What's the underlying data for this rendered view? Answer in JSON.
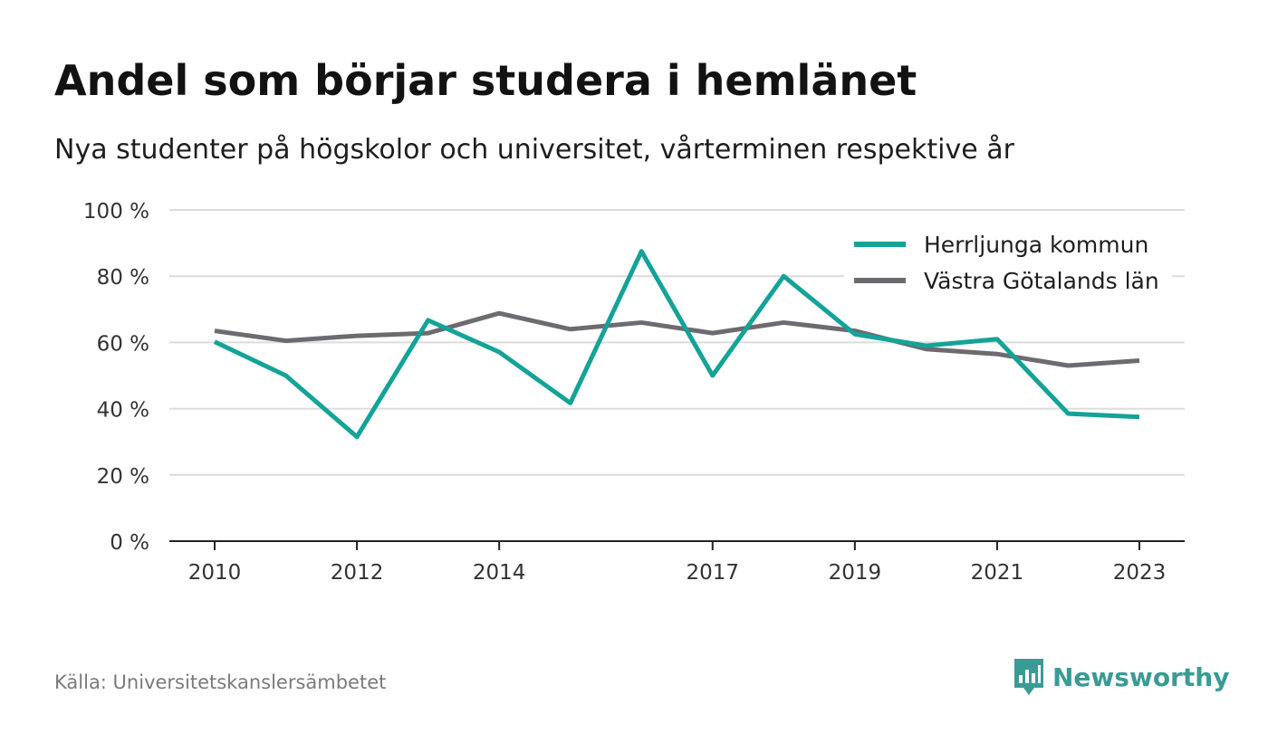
{
  "title": "Andel som börjar studera i hemlänet",
  "subtitle": "Nya studenter på högskolor och universitet, vårterminen respektive år",
  "source": "Källa: Universitetskanslersämbetet",
  "brand": "Newsworthy",
  "colors": {
    "brand": "#3a9b95",
    "series1": "#13a398",
    "series2": "#6d6a70"
  },
  "chart_data": {
    "type": "line",
    "title": "Andel som börjar studera i hemlänet",
    "xlabel": "",
    "ylabel": "",
    "x": [
      2010,
      2011,
      2012,
      2013,
      2014,
      2015,
      2016,
      2017,
      2018,
      2019,
      2020,
      2021,
      2022,
      2023
    ],
    "x_tick_values": [
      2010,
      2012,
      2014,
      2017,
      2019,
      2021,
      2023
    ],
    "x_tick_labels": [
      "2010",
      "2012",
      "2014",
      "2017",
      "2019",
      "2021",
      "2023"
    ],
    "ylim": [
      0,
      100
    ],
    "y_tick_values": [
      0,
      20,
      40,
      60,
      80,
      100
    ],
    "y_tick_labels": [
      "0 %",
      "20 %",
      "40 %",
      "60 %",
      "80 %",
      "100 %"
    ],
    "grid": true,
    "legend_position": "top-right",
    "series": [
      {
        "name": "Herrljunga kommun",
        "color": "#13a398",
        "values": [
          60.2,
          50.0,
          31.5,
          66.7,
          57.1,
          41.7,
          87.5,
          50.0,
          80.0,
          62.5,
          59.0,
          61.0,
          38.5,
          37.5
        ]
      },
      {
        "name": "Västra Götalands län",
        "color": "#6d6a70",
        "values": [
          63.5,
          60.5,
          62.0,
          62.8,
          68.8,
          64.0,
          66.0,
          62.8,
          66.0,
          63.5,
          58.0,
          56.5,
          53.0,
          54.5
        ]
      }
    ]
  }
}
